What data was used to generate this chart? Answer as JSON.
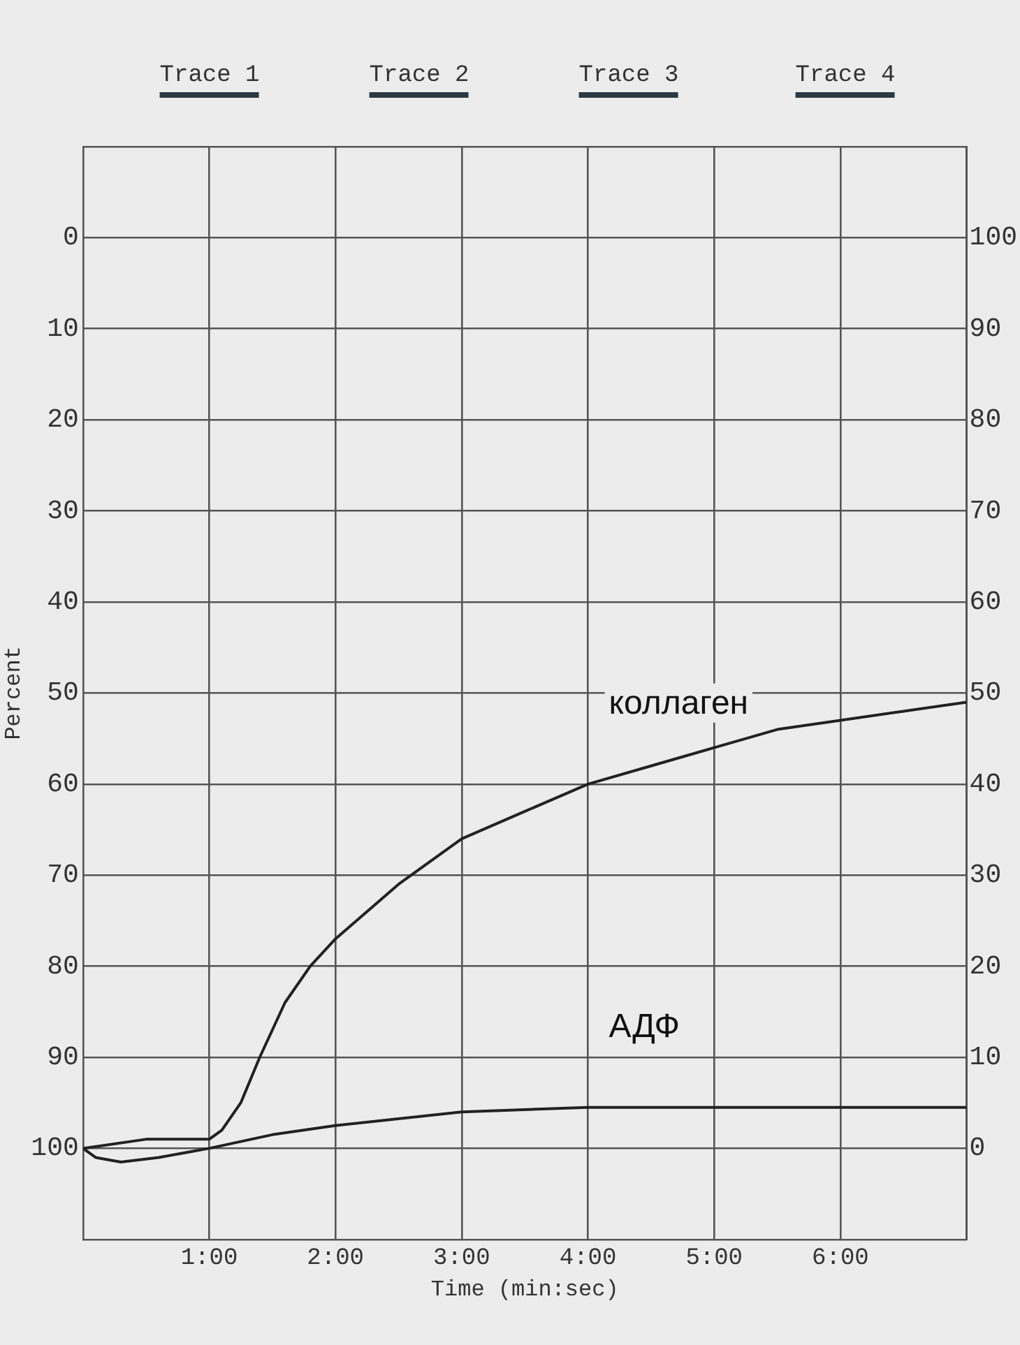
{
  "chart_data": {
    "type": "line",
    "annotations": [
      "Trace 1",
      "Trace 2",
      "Trace 3",
      "Trace 4"
    ],
    "xlabel": "Time (min:sec)",
    "ylabel": "Percent",
    "x": [
      0,
      0.5,
      1.0,
      1.1,
      1.25,
      1.4,
      1.6,
      1.8,
      2.0,
      2.5,
      3.0,
      3.5,
      4.0,
      4.5,
      5.0,
      5.5,
      6.0,
      6.5,
      7.0
    ],
    "series": [
      {
        "name": "коллаген",
        "color": "#222222",
        "values": [
          100,
          99,
          99,
          98,
          95,
          90,
          84,
          80,
          77,
          71,
          66,
          63,
          60,
          58,
          56,
          54,
          53,
          52,
          51
        ]
      },
      {
        "name": "АДФ",
        "color": "#222222",
        "x": [
          0,
          0.1,
          0.3,
          0.6,
          1.0,
          1.5,
          2.0,
          3.0,
          4.0,
          5.0,
          6.0,
          7.0
        ],
        "values": [
          100,
          101,
          101.5,
          101,
          100,
          98.5,
          97.5,
          96,
          95.5,
          95.5,
          95.5,
          95.5
        ]
      }
    ],
    "xlim": [
      0,
      7
    ],
    "xticks": [
      {
        "value": 0,
        "label": null
      },
      {
        "value": 1,
        "label": "1:00"
      },
      {
        "value": 2,
        "label": "2:00"
      },
      {
        "value": 3,
        "label": "3:00"
      },
      {
        "value": 4,
        "label": "4:00"
      },
      {
        "value": 5,
        "label": "5:00"
      },
      {
        "value": 6,
        "label": "6:00"
      },
      {
        "value": 7,
        "label": null
      }
    ],
    "ylim": [
      110,
      -10
    ],
    "yticks": [
      {
        "value": -10,
        "label": null
      },
      0,
      10,
      20,
      30,
      40,
      50,
      60,
      70,
      80,
      90,
      100,
      {
        "value": 110,
        "label": null
      }
    ],
    "y2lim": [
      -10,
      110
    ],
    "y2ticks": [
      {
        "value": -10,
        "label": null
      },
      0,
      10,
      20,
      30,
      40,
      50,
      60,
      70,
      80,
      90,
      100,
      {
        "value": 110,
        "label": null
      }
    ],
    "grid": true,
    "legend": false,
    "marker": "none",
    "line_style": "solid"
  }
}
